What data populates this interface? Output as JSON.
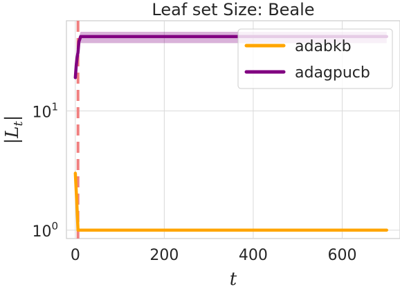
{
  "chart_data": {
    "type": "line",
    "title": "Leaf set Size: Beale",
    "xlabel": "t",
    "ylabel": "|L_t|",
    "yscale": "log",
    "xlim": [
      -20,
      730
    ],
    "ylim": [
      0.85,
      57
    ],
    "x_ticks": [
      0,
      200,
      400,
      600
    ],
    "y_ticks": [
      {
        "value": 1,
        "base": "10",
        "exp": "0"
      },
      {
        "value": 10,
        "base": "10",
        "exp": "1"
      }
    ],
    "grid": true,
    "legend_position": "top-right",
    "vline": {
      "x": 6,
      "color": "#f08080",
      "style": "dashed"
    },
    "series": [
      {
        "name": "adabkb",
        "color": "#ffa500",
        "x": [
          0,
          3,
          6,
          10,
          50,
          100,
          200,
          300,
          400,
          500,
          600,
          700
        ],
        "y": [
          3,
          1.8,
          1,
          1,
          1,
          1,
          1,
          1,
          1,
          1,
          1,
          1
        ]
      },
      {
        "name": "adagpucb",
        "color": "#800080",
        "x": [
          0,
          2,
          4,
          6,
          8,
          12,
          50,
          100,
          200,
          300,
          400,
          500,
          600,
          700
        ],
        "y": [
          19,
          24,
          28,
          31,
          38,
          42,
          42,
          42,
          42,
          42,
          42,
          42,
          42,
          42
        ],
        "band": {
          "lower": [
            19,
            23,
            26,
            29,
            35,
            37,
            37,
            37,
            37,
            37,
            37,
            37,
            37,
            37
          ],
          "upper": [
            19,
            25,
            30,
            34,
            42,
            46,
            46,
            46,
            46,
            46,
            46,
            46,
            46,
            46
          ]
        }
      }
    ]
  }
}
